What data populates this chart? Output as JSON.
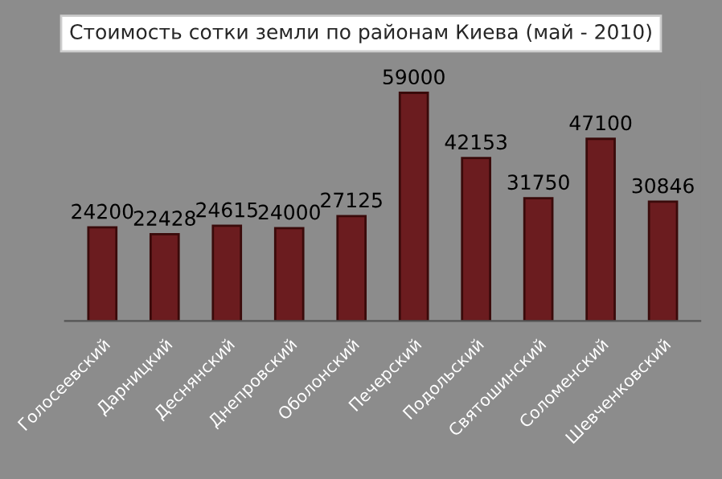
{
  "chart_data": {
    "type": "bar",
    "title": "Стоимость сотки земли по районам Киева (май - 2010)",
    "categories": [
      "Голосеевский",
      "Дарницкий",
      "Деснянский",
      "Днепровский",
      "Оболонский",
      "Печерский",
      "Подольский",
      "Святошинский",
      "Соломенский",
      "Шевченковский"
    ],
    "values": [
      24200,
      22428,
      24615,
      24000,
      27125,
      59000,
      42153,
      31750,
      47100,
      30846
    ],
    "color": "#6b1c1f",
    "data_labels": true,
    "grid": false,
    "legend": false
  }
}
